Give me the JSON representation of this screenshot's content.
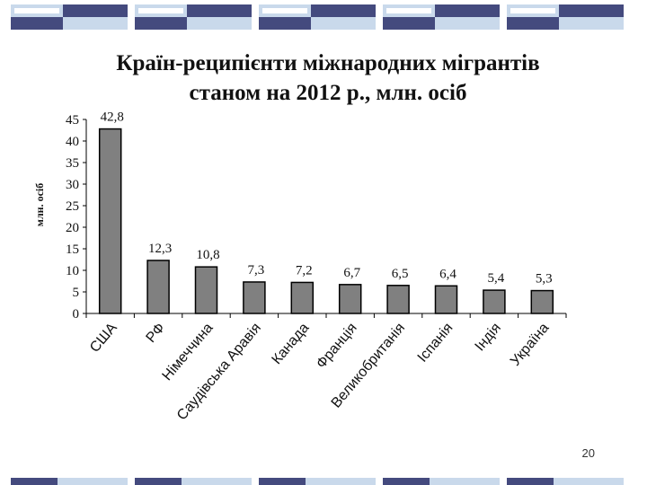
{
  "slide": {
    "title_line1": "Країн-реципієнти міжнародних мігрантів",
    "title_line2": "станом на 2012 р., млн. осіб",
    "page_number": "20"
  },
  "colors": {
    "bar_fill": "#808080",
    "bar_stroke": "#000000",
    "deco_dark": "#444a7e",
    "deco_light": "#c9d9eb",
    "deco_white": "#ffffff"
  },
  "chart_data": {
    "type": "bar",
    "title": "",
    "ylabel": "млн. осіб",
    "xlabel": "",
    "ylim": [
      0,
      45
    ],
    "yticks": [
      "0",
      "5",
      "10",
      "15",
      "20",
      "25",
      "30",
      "35",
      "40",
      "45"
    ],
    "categories": [
      "США",
      "РФ",
      "Німеччина",
      "Саудівська Аравія",
      "Канада",
      "Франція",
      "Великобританія",
      "Іспанія",
      "Індія",
      "Україна"
    ],
    "values": [
      42.8,
      12.3,
      10.8,
      7.3,
      7.2,
      6.7,
      6.5,
      6.4,
      5.4,
      5.3
    ],
    "value_labels": [
      "42,8",
      "12,3",
      "10,8",
      "7,3",
      "7,2",
      "6,7",
      "6,5",
      "6,4",
      "5,4",
      "5,3"
    ],
    "grid": false,
    "legend": "none"
  }
}
